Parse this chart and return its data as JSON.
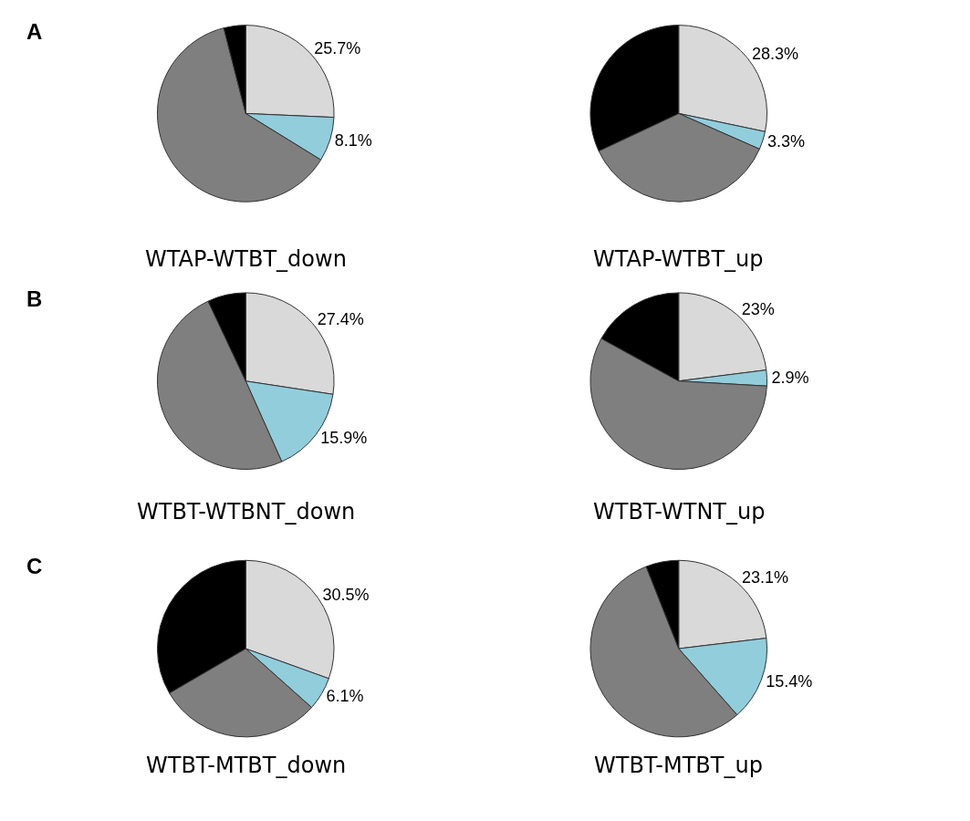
{
  "chart_data": [
    {
      "type": "pie",
      "title": "WTAP-WTBT_down",
      "categories": [
        null,
        null,
        null,
        null
      ],
      "values": [
        25.7,
        8.1,
        62.2,
        4.0
      ],
      "colors": [
        "#d9d9d9",
        "#92cddc",
        "#7f7f7f",
        "#000000"
      ],
      "value_labels": [
        "25.7%",
        "8.1%",
        null,
        null
      ],
      "annotations": [
        "A"
      ],
      "legend": false
    },
    {
      "type": "pie",
      "title": "WTAP-WTBT_up",
      "categories": [
        null,
        null,
        null,
        null
      ],
      "values": [
        28.3,
        3.3,
        36.4,
        32.0
      ],
      "colors": [
        "#d9d9d9",
        "#92cddc",
        "#7f7f7f",
        "#000000"
      ],
      "value_labels": [
        "28.3%",
        "3.3%",
        null,
        null
      ],
      "legend": false
    },
    {
      "type": "pie",
      "title": "WTBT-WTBNT_down",
      "categories": [
        null,
        null,
        null,
        null
      ],
      "values": [
        27.4,
        15.9,
        49.7,
        7.0
      ],
      "colors": [
        "#d9d9d9",
        "#92cddc",
        "#7f7f7f",
        "#000000"
      ],
      "value_labels": [
        "27.4%",
        "15.9%",
        null,
        null
      ],
      "annotations": [
        "B"
      ],
      "legend": false
    },
    {
      "type": "pie",
      "title": "WTBT-WTNT_up",
      "categories": [
        null,
        null,
        null,
        null
      ],
      "values": [
        23,
        2.9,
        57.1,
        17.0
      ],
      "colors": [
        "#d9d9d9",
        "#92cddc",
        "#7f7f7f",
        "#000000"
      ],
      "value_labels": [
        "23%",
        "2.9%",
        null,
        null
      ],
      "legend": false
    },
    {
      "type": "pie",
      "title": "WTBT-MTBT_down",
      "categories": [
        null,
        null,
        null,
        null
      ],
      "values": [
        30.5,
        6.1,
        30.0,
        33.4
      ],
      "colors": [
        "#d9d9d9",
        "#92cddc",
        "#7f7f7f",
        "#000000"
      ],
      "value_labels": [
        "30.5%",
        "6.1%",
        null,
        null
      ],
      "annotations": [
        "C"
      ],
      "legend": false
    },
    {
      "type": "pie",
      "title": "WTBT-MTBT_up",
      "categories": [
        null,
        null,
        null,
        null
      ],
      "values": [
        23.1,
        15.4,
        55.5,
        6.0
      ],
      "colors": [
        "#d9d9d9",
        "#92cddc",
        "#7f7f7f",
        "#000000"
      ],
      "value_labels": [
        "23.1%",
        "15.4%",
        null,
        null
      ],
      "legend": false
    }
  ]
}
